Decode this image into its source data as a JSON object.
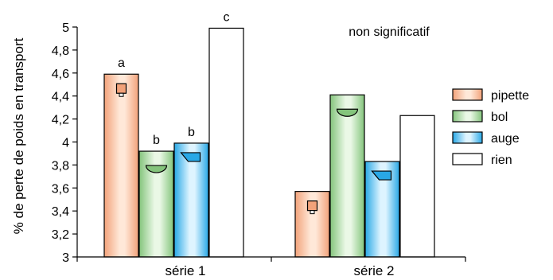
{
  "chart_data": {
    "type": "bar",
    "ylabel": "% de perte de poids en transport",
    "ylim": [
      3,
      5
    ],
    "y_ticks": [
      "3",
      "3,2",
      "3,4",
      "3,6",
      "3,8",
      "4",
      "4,2",
      "4,4",
      "4,6",
      "4,8",
      "5"
    ],
    "categories": [
      "série 1",
      "série 2"
    ],
    "series": [
      {
        "name": "pipette",
        "values": [
          4.59,
          3.57
        ],
        "color_light": "#ffe8d8",
        "color_dark": "#f2a27a"
      },
      {
        "name": "bol",
        "values": [
          3.92,
          4.41
        ],
        "color_light": "#eaf8e6",
        "color_dark": "#84c47c"
      },
      {
        "name": "auge",
        "values": [
          3.99,
          3.83
        ],
        "color_light": "#def4ff",
        "color_dark": "#29a8e6"
      },
      {
        "name": "rien",
        "values": [
          4.99,
          4.23
        ],
        "color_light": "#ffffff",
        "color_dark": "#ffffff"
      }
    ],
    "bar_letters": [
      [
        "a",
        "b",
        "b",
        "c"
      ],
      [
        "",
        "",
        "",
        ""
      ]
    ],
    "annotation": "non significatif",
    "legend_position": "right",
    "grid": false
  }
}
